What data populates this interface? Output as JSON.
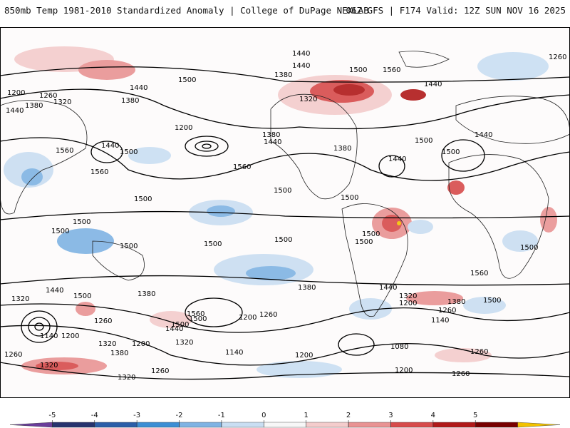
{
  "header": {
    "title": "850mb Temp 1981-2010 Standardized Anomaly | College of DuPage NEXLAB",
    "run_info": "06Z GFS | F174 Valid: 12Z SUN NOV 16 2025"
  },
  "colorbar": {
    "tick_labels": [
      "-5",
      "-4",
      "-3",
      "-2",
      "-1",
      "0",
      "1",
      "2",
      "3",
      "4",
      "5"
    ],
    "colors": [
      "#6a3d9a",
      "#26336e",
      "#2b5ea8",
      "#3c8ed4",
      "#7fb3e3",
      "#c9def2",
      "#f7f7f7",
      "#f4cccc",
      "#e99393",
      "#d74b4b",
      "#b01919",
      "#780000",
      "#f2c200"
    ]
  },
  "contour_labels": [
    {
      "text": "1440"
    },
    {
      "text": "1260"
    },
    {
      "text": "1440"
    },
    {
      "text": "1500"
    },
    {
      "text": "1560"
    },
    {
      "text": "1380"
    },
    {
      "text": "1500"
    },
    {
      "text": "1440"
    },
    {
      "text": "1200"
    },
    {
      "text": "1260"
    },
    {
      "text": "1320"
    },
    {
      "text": "1380"
    },
    {
      "text": "1440"
    },
    {
      "text": "1320"
    },
    {
      "text": "1380"
    },
    {
      "text": "1440"
    },
    {
      "text": "1380"
    },
    {
      "text": "1200"
    },
    {
      "text": "1440"
    },
    {
      "text": "1500"
    },
    {
      "text": "1560"
    },
    {
      "text": "1380"
    },
    {
      "text": "1440"
    },
    {
      "text": "1500"
    },
    {
      "text": "1440"
    },
    {
      "text": "1500"
    },
    {
      "text": "1440"
    },
    {
      "text": "1560"
    },
    {
      "text": "1560"
    },
    {
      "text": "1500"
    },
    {
      "text": "1500"
    },
    {
      "text": "1500"
    },
    {
      "text": "1500"
    },
    {
      "text": "1500"
    },
    {
      "text": "1500"
    },
    {
      "text": "1500"
    },
    {
      "text": "1500"
    },
    {
      "text": "1500"
    },
    {
      "text": "1500"
    },
    {
      "text": "1500"
    },
    {
      "text": "1560"
    },
    {
      "text": "1440"
    },
    {
      "text": "1320"
    },
    {
      "text": "1200"
    },
    {
      "text": "1380"
    },
    {
      "text": "1500"
    },
    {
      "text": "1260"
    },
    {
      "text": "1140"
    },
    {
      "text": "1440"
    },
    {
      "text": "1320"
    },
    {
      "text": "1500"
    },
    {
      "text": "1380"
    },
    {
      "text": "1500"
    },
    {
      "text": "1560"
    },
    {
      "text": "1500"
    },
    {
      "text": "1440"
    },
    {
      "text": "1260"
    },
    {
      "text": "1200"
    },
    {
      "text": "1380"
    },
    {
      "text": "1260"
    },
    {
      "text": "1140"
    },
    {
      "text": "1200"
    },
    {
      "text": "1320"
    },
    {
      "text": "1380"
    },
    {
      "text": "1200"
    },
    {
      "text": "1320"
    },
    {
      "text": "1140"
    },
    {
      "text": "1200"
    },
    {
      "text": "1080"
    },
    {
      "text": "1260"
    },
    {
      "text": "1260"
    },
    {
      "text": "1320"
    },
    {
      "text": "1260"
    },
    {
      "text": "1200"
    },
    {
      "text": "1260"
    },
    {
      "text": "1320"
    }
  ]
}
